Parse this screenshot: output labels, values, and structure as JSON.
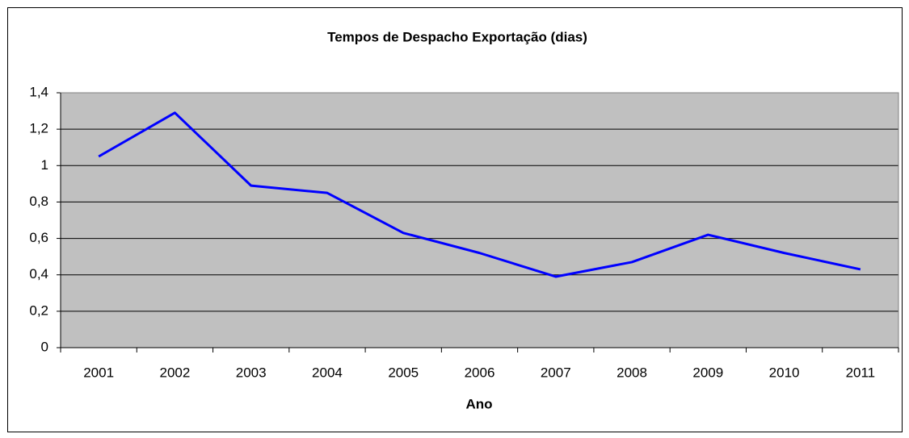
{
  "chart_data": {
    "type": "line",
    "title": "Tempos de Despacho Exportação (dias)",
    "x_label": "Ano",
    "categories": [
      "2001",
      "2002",
      "2003",
      "2004",
      "2005",
      "2006",
      "2007",
      "2008",
      "2009",
      "2010",
      "2011"
    ],
    "values": [
      1.05,
      1.29,
      0.89,
      0.85,
      0.63,
      0.52,
      0.39,
      0.47,
      0.62,
      0.52,
      0.43
    ],
    "color": "#0000ff",
    "ylim": [
      0,
      1.4
    ],
    "yticks": [
      0,
      {
        "value": 0.2,
        "label": "0,2"
      },
      {
        "value": 0.4,
        "label": "0,4"
      },
      {
        "value": 0.6,
        "label": "0,6"
      },
      {
        "value": 0.8,
        "label": "0,8"
      },
      1,
      {
        "value": 1.2,
        "label": "1,2"
      },
      {
        "value": 1.4,
        "label": "1,4"
      }
    ],
    "grid": true
  }
}
